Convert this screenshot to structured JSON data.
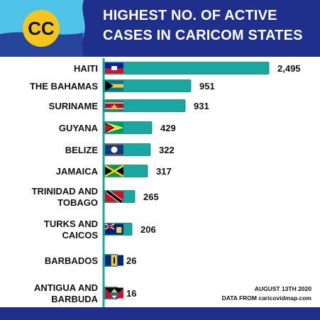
{
  "header": {
    "title_line1": "HIGHEST NO. OF ACTIVE",
    "title_line2": "CASES IN CARICOM STATES",
    "logo_text": "CC"
  },
  "footer": {
    "date": "AUGUST 13TH 2020",
    "source": "DATA FROM caricovidmap.com"
  },
  "colors": {
    "header_bg": "#1f2f8c",
    "bar_fill": "#1aa7a1",
    "bar_stroke": "#0d7c77",
    "axis": "#1aa7a1",
    "flag_sky": "#4fc3e8",
    "flag_blue": "#1f2f8c",
    "logo_yellow": "#f4c51b"
  },
  "chart_data": {
    "type": "bar",
    "orientation": "horizontal",
    "categories": [
      [
        "HAITI"
      ],
      [
        "THE BAHAMAS"
      ],
      [
        "SURINAME"
      ],
      [
        "GUYANA"
      ],
      [
        "BELIZE"
      ],
      [
        "JAMAICA"
      ],
      [
        "TRINIDAD AND",
        "TOBAGO"
      ],
      [
        "TURKS AND",
        "CAICOS"
      ],
      [
        "BARBADOS"
      ],
      [
        "ANTIGUA AND",
        "BARBUDA"
      ]
    ],
    "values": [
      2495,
      951,
      931,
      429,
      322,
      317,
      265,
      206,
      26,
      16
    ],
    "value_labels": [
      "2,495",
      "951",
      "931",
      "429",
      "322",
      "317",
      "265",
      "206",
      "26",
      "16"
    ],
    "flags": [
      "haiti-flag",
      "bahamas-flag",
      "suriname-flag",
      "guyana-flag",
      "belize-flag",
      "jamaica-flag",
      "trinidad-tobago-flag",
      "turks-caicos-flag",
      "barbados-flag",
      "antigua-barbuda-flag"
    ],
    "scale": "nonlinear",
    "grid": false
  }
}
